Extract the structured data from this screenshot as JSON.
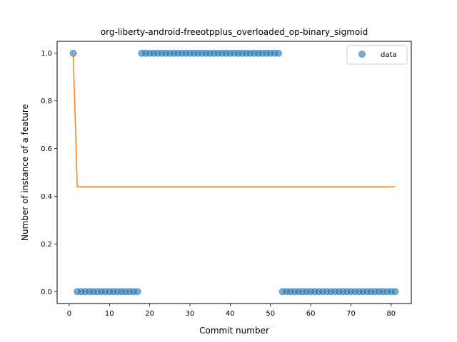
{
  "chart_data": {
    "type": "scatter",
    "title": "org-liberty-android-freeotpplus_overloaded_op-binary_sigmoid",
    "xlabel": "Commit number",
    "ylabel": "Number of instance of a feature",
    "xlim": [
      -3,
      85
    ],
    "ylim": [
      -0.05,
      1.05
    ],
    "xticks": [
      0,
      10,
      20,
      30,
      40,
      50,
      60,
      70,
      80
    ],
    "yticks": [
      0.0,
      0.2,
      0.4,
      0.6,
      0.8,
      1.0
    ],
    "xtick_labels": [
      "0",
      "10",
      "20",
      "30",
      "40",
      "50",
      "60",
      "70",
      "80"
    ],
    "ytick_labels": [
      "0.0",
      "0.2",
      "0.4",
      "0.6",
      "0.8",
      "1.0"
    ],
    "grid": false,
    "legend": {
      "position": "top-right",
      "entries": [
        "data"
      ]
    },
    "series": [
      {
        "name": "data",
        "kind": "scatter",
        "color": "#1f77b4",
        "x": [
          1,
          2,
          3,
          4,
          5,
          6,
          7,
          8,
          9,
          10,
          11,
          12,
          13,
          14,
          15,
          16,
          17,
          18,
          19,
          20,
          21,
          22,
          23,
          24,
          25,
          26,
          27,
          28,
          29,
          30,
          31,
          32,
          33,
          34,
          35,
          36,
          37,
          38,
          39,
          40,
          41,
          42,
          43,
          44,
          45,
          46,
          47,
          48,
          49,
          50,
          51,
          52,
          53,
          54,
          55,
          56,
          57,
          58,
          59,
          60,
          61,
          62,
          63,
          64,
          65,
          66,
          67,
          68,
          69,
          70,
          71,
          72,
          73,
          74,
          75,
          76,
          77,
          78,
          79,
          80,
          81
        ],
        "y": [
          1,
          0,
          0,
          0,
          0,
          0,
          0,
          0,
          0,
          0,
          0,
          0,
          0,
          0,
          0,
          0,
          0,
          1,
          1,
          1,
          1,
          1,
          1,
          1,
          1,
          1,
          1,
          1,
          1,
          1,
          1,
          1,
          1,
          1,
          1,
          1,
          1,
          1,
          1,
          1,
          1,
          1,
          1,
          1,
          1,
          1,
          1,
          1,
          1,
          1,
          1,
          1,
          0,
          0,
          0,
          0,
          0,
          0,
          0,
          0,
          0,
          0,
          0,
          0,
          0,
          0,
          0,
          0,
          0,
          0,
          0,
          0,
          0,
          0,
          0,
          0,
          0,
          0,
          0,
          0,
          0
        ]
      },
      {
        "kind": "line",
        "color": "#ff7f0e",
        "x": [
          1,
          2,
          3,
          81
        ],
        "y": [
          1.0,
          0.44,
          0.44,
          0.44
        ]
      }
    ]
  }
}
